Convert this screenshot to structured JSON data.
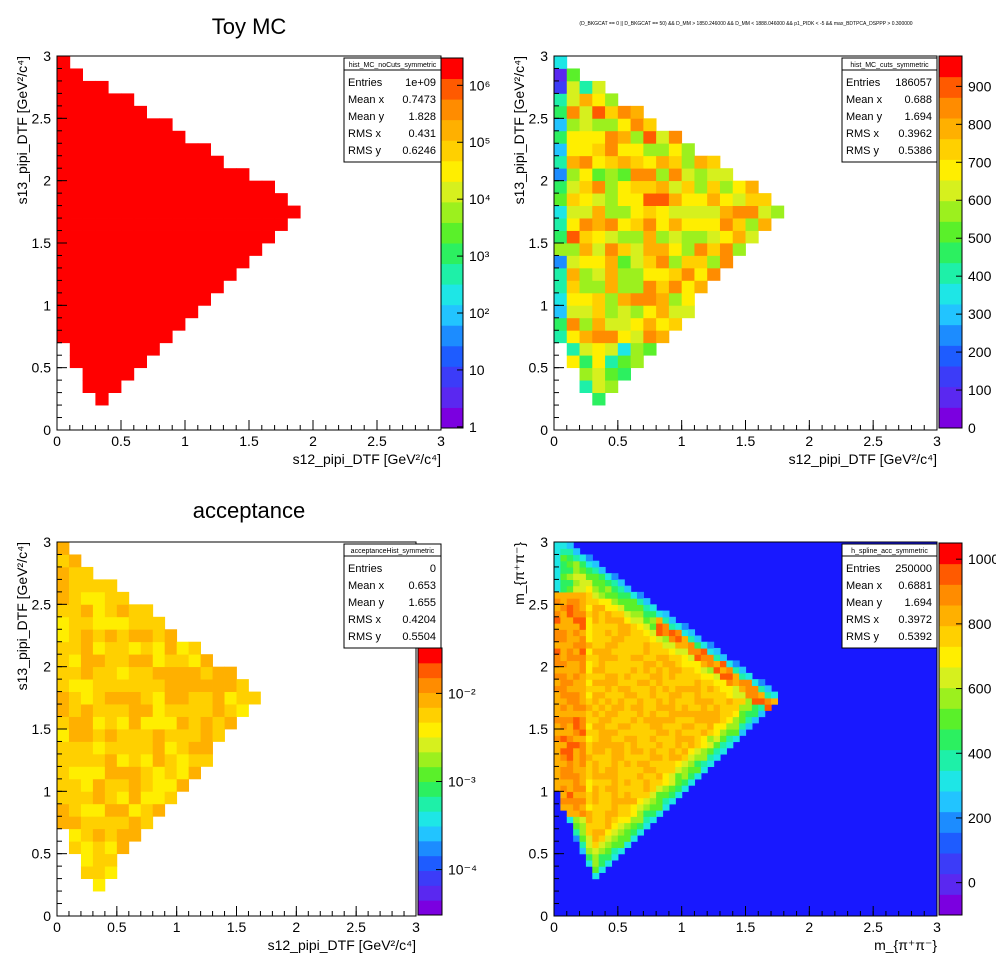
{
  "chart_data": [
    {
      "type": "heatmap",
      "title": "Toy MC",
      "xlabel": "s12_pipi_DTF [GeV²/c⁴]",
      "ylabel": "s13_pipi_DTF [GeV²/c⁴]",
      "xlim": [
        0,
        3
      ],
      "ylim": [
        0,
        3
      ],
      "x_ticks": [
        "0",
        "0.5",
        "1",
        "1.5",
        "2",
        "2.5",
        "3"
      ],
      "y_ticks": [
        "0",
        "0.5",
        "1",
        "1.5",
        "2",
        "2.5",
        "3"
      ],
      "z_scale": "log",
      "z_ticks": [
        "1",
        "10",
        "10²",
        "10³",
        "10⁴",
        "10⁵",
        "10⁶"
      ],
      "stats": {
        "name": "hist_MC_noCuts_symmetric",
        "rows": [
          [
            "Entries",
            "1e+09"
          ],
          [
            "Mean x",
            "0.7473"
          ],
          [
            "Mean y",
            "1.828"
          ],
          [
            "RMS x",
            "0.431"
          ],
          [
            "RMS y",
            "0.6246"
          ]
        ]
      }
    },
    {
      "type": "heatmap",
      "title": "(D_BKGCAT == 0 || D_BKGCAT == 50) && D_MM > 1850.246000 && D_MM < 1888.046000 && p1_PIDK < -5 && max_BDTPCA_DSPPP > 0.300000",
      "xlabel": "s12_pipi_DTF [GeV²/c⁴]",
      "ylabel": "s13_pipi_DTF [GeV²/c⁴]",
      "xlim": [
        0,
        3
      ],
      "ylim": [
        0,
        3
      ],
      "x_ticks": [
        "0",
        "0.5",
        "1",
        "1.5",
        "2",
        "2.5",
        "3"
      ],
      "y_ticks": [
        "0",
        "0.5",
        "1",
        "1.5",
        "2",
        "2.5",
        "3"
      ],
      "z_scale": "linear",
      "z_range": [
        0,
        980
      ],
      "z_ticks": [
        "0",
        "100",
        "200",
        "300",
        "400",
        "500",
        "600",
        "700",
        "800",
        "900"
      ],
      "stats": {
        "name": "hist_MC_cuts_symmetric",
        "rows": [
          [
            "Entries",
            "186057"
          ],
          [
            "Mean x",
            "0.688"
          ],
          [
            "Mean y",
            "1.694"
          ],
          [
            "RMS x",
            "0.3962"
          ],
          [
            "RMS y",
            "0.5386"
          ]
        ]
      }
    },
    {
      "type": "heatmap",
      "title": "acceptance",
      "xlabel": "s12_pipi_DTF [GeV²/c⁴]",
      "ylabel": "s13_pipi_DTF [GeV²/c⁴]",
      "xlim": [
        0,
        3
      ],
      "ylim": [
        0,
        3
      ],
      "x_ticks": [
        "0",
        "0.5",
        "1",
        "1.5",
        "2",
        "2.5",
        "3"
      ],
      "y_ticks": [
        "0",
        "0.5",
        "1",
        "1.5",
        "2",
        "2.5",
        "3"
      ],
      "z_scale": "log",
      "z_ticks": [
        "10⁻⁴",
        "10⁻³",
        "10⁻²"
      ],
      "stats": {
        "name": "acceptanceHist_symmetric",
        "rows": [
          [
            "Entries",
            "0"
          ],
          [
            "Mean x",
            "0.653"
          ],
          [
            "Mean y",
            "1.655"
          ],
          [
            "RMS x",
            "0.4204"
          ],
          [
            "RMS y",
            "0.5504"
          ]
        ]
      }
    },
    {
      "type": "heatmap",
      "title": "",
      "xlabel": "m_{π⁺π⁻}",
      "ylabel": "m_{π⁺π⁻}",
      "xlim": [
        0,
        3
      ],
      "ylim": [
        0,
        3
      ],
      "x_ticks": [
        "0",
        "0.5",
        "1",
        "1.5",
        "2",
        "2.5",
        "3"
      ],
      "y_ticks": [
        "0",
        "0.5",
        "1",
        "1.5",
        "2",
        "2.5",
        "3"
      ],
      "z_scale": "linear",
      "z_range": [
        -100,
        1050
      ],
      "z_ticks": [
        "0",
        "200",
        "400",
        "600",
        "800",
        "1000"
      ],
      "stats": {
        "name": "h_spline_acc_symmetric",
        "rows": [
          [
            "Entries",
            "250000"
          ],
          [
            "Mean x",
            "0.6881"
          ],
          [
            "Mean y",
            "1.694"
          ],
          [
            "RMS x",
            "0.3972"
          ],
          [
            "RMS y",
            "0.5392"
          ]
        ]
      }
    }
  ]
}
